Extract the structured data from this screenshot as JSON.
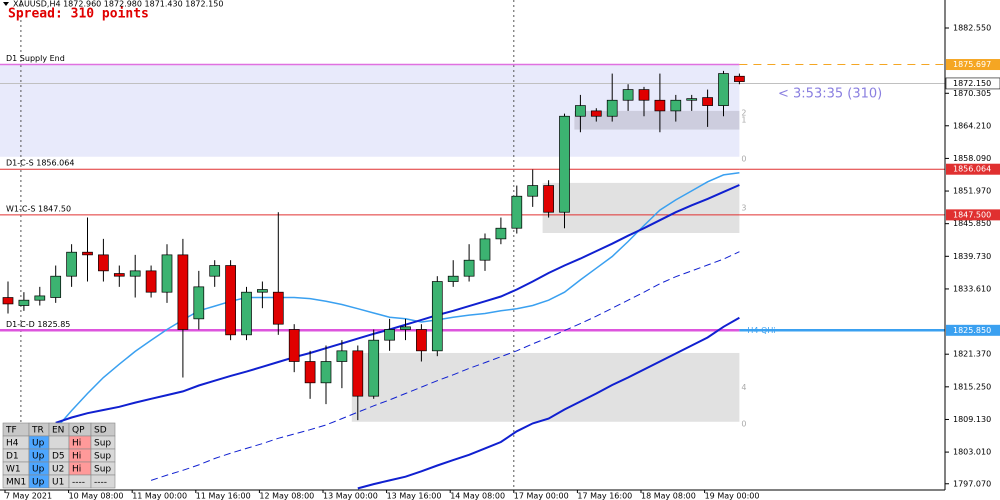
{
  "chart_data": {
    "type": "candlestick",
    "title": "XAUUSD,H4  1872.960 1872.980 1871.430 1872.150",
    "subtitle": "Spread: 310 points",
    "countdown": "< 3:53:35 (310)",
    "ylim": [
      1795.9,
      1887.8
    ],
    "yticks": [
      {
        "value": 1882.55,
        "label": "1882.550"
      },
      {
        "value": 1870.305,
        "label": "1870.305"
      },
      {
        "value": 1864.21,
        "label": "1864.210"
      },
      {
        "value": 1858.09,
        "label": "1858.090"
      },
      {
        "value": 1851.97,
        "label": "1851.970"
      },
      {
        "value": 1845.85,
        "label": "1845.850"
      },
      {
        "value": 1839.73,
        "label": "1839.730"
      },
      {
        "value": 1833.61,
        "label": "1833.610"
      },
      {
        "value": 1821.37,
        "label": "1821.370"
      },
      {
        "value": 1815.25,
        "label": "1815.250"
      },
      {
        "value": 1809.13,
        "label": "1809.130"
      },
      {
        "value": 1803.01,
        "label": "1803.010"
      },
      {
        "value": 1797.07,
        "label": "1797.070"
      }
    ],
    "categories": [
      "7 May 2021",
      null,
      null,
      null,
      "10 May 08:00",
      null,
      null,
      null,
      "11 May 00:00",
      null,
      null,
      null,
      "11 May 16:00",
      null,
      null,
      null,
      "12 May 08:00",
      null,
      null,
      null,
      "13 May 00:00",
      null,
      null,
      null,
      "13 May 16:00",
      null,
      null,
      null,
      "14 May 08:00",
      null,
      null,
      null,
      "17 May 00:00",
      null,
      null,
      null,
      "17 May 16:00",
      null,
      null,
      null,
      "18 May 08:00",
      null,
      null,
      null,
      "19 May 00:00",
      null,
      null
    ],
    "session_lines": [
      1,
      32
    ],
    "up_color": "#3cb371",
    "down_color": "#e00000",
    "open": [
      1832,
      1830.5,
      1831.5,
      1832,
      1836,
      1840.5,
      1840,
      1836.5,
      1836,
      1837,
      1833,
      1840,
      1828,
      1836,
      1838,
      1825,
      1833,
      1833,
      1826,
      1820,
      1816,
      1820,
      1822,
      1813.5,
      1824,
      1826,
      1826,
      1822,
      1835,
      1836,
      1839,
      1843,
      1845,
      1851,
      1853,
      1848,
      1866,
      1867,
      1866,
      1869,
      1871,
      1869,
      1867,
      1869,
      1869.5,
      1868,
      1873.5
    ],
    "close": [
      1830.8,
      1831.5,
      1832.3,
      1836,
      1840.5,
      1840,
      1837,
      1836,
      1837,
      1833,
      1840,
      1826,
      1834,
      1838,
      1825,
      1833,
      1833.5,
      1827,
      1820,
      1816,
      1820,
      1822,
      1813.5,
      1824,
      1826,
      1826.5,
      1822,
      1835,
      1836,
      1839,
      1843,
      1845,
      1851,
      1853,
      1848,
      1866,
      1868,
      1866,
      1869,
      1871,
      1869,
      1867,
      1869,
      1869.3,
      1868,
      1874,
      1872.5
    ],
    "high": [
      1835,
      1833,
      1834,
      1838,
      1842,
      1847,
      1843,
      1838,
      1840,
      1838,
      1842,
      1843,
      1837,
      1839,
      1839,
      1834,
      1835,
      1848,
      1827,
      1822,
      1823,
      1824,
      1823,
      1826,
      1828,
      1828,
      1827,
      1836,
      1839,
      1842,
      1844,
      1847,
      1853,
      1856,
      1854,
      1866.5,
      1870,
      1867.5,
      1874,
      1872,
      1871.5,
      1874,
      1870,
      1870,
      1871,
      1874.5,
      1874
    ],
    "low": [
      1829,
      1829.5,
      1830.5,
      1831,
      1834,
      1835,
      1835,
      1834,
      1832,
      1832,
      1831,
      1817,
      1826,
      1834,
      1824,
      1824,
      1830,
      1825,
      1818,
      1813,
      1812,
      1815,
      1809,
      1813,
      1822,
      1824,
      1820,
      1821,
      1834,
      1835,
      1837,
      1842,
      1844,
      1849,
      1847,
      1845,
      1863,
      1865,
      1865,
      1867,
      1866,
      1863,
      1865,
      1867,
      1864,
      1866,
      1872
    ],
    "series": [
      {
        "color": "#3aa0f0",
        "dash": false,
        "width": 1.5,
        "values": [
          null,
          null,
          null,
          1807.4,
          1810.8,
          1814,
          1817,
          1819.5,
          1821.9,
          1824,
          1826,
          1827.8,
          1829.5,
          1830.4,
          1831.3,
          1832,
          1832,
          1832,
          1832,
          1831.8,
          1831.3,
          1830.7,
          1829.9,
          1829.1,
          1828.3,
          1828,
          1827.4,
          1827.8,
          1828.3,
          1828.7,
          1829,
          1829.5,
          1829.9,
          1830.5,
          1831.5,
          1833,
          1835.3,
          1837.5,
          1839.7,
          1842.5,
          1845.5,
          1848.4,
          1850.3,
          1852,
          1853.7,
          1855,
          1855.4
        ]
      },
      {
        "color": "#1020d0",
        "dash": false,
        "width": 2,
        "values": [
          null,
          null,
          null,
          1808.5,
          1809.5,
          1810.3,
          1810.9,
          1811.5,
          1812.3,
          1813,
          1813.7,
          1814.4,
          1815.5,
          1816.4,
          1817.3,
          1818.1,
          1819,
          1819.9,
          1820.8,
          1821.6,
          1822.5,
          1823.4,
          1824.3,
          1825.2,
          1826,
          1826.9,
          1827.8,
          1828.7,
          1829.5,
          1830.4,
          1831.3,
          1832.2,
          1833.5,
          1835,
          1836.6,
          1838,
          1839.3,
          1840.7,
          1842.1,
          1843.6,
          1845,
          1846.5,
          1848,
          1849.3,
          1850.5,
          1851.8,
          1853.1
        ]
      },
      {
        "color": "#1020d0",
        "dash": true,
        "width": 1,
        "values": [
          null,
          null,
          null,
          null,
          null,
          null,
          null,
          null,
          null,
          1797.7,
          1798.7,
          1799.6,
          1800.6,
          1801.8,
          1802.8,
          1803.7,
          1804.6,
          1805.6,
          1806.4,
          1807.2,
          1808.1,
          1809.3,
          1810.5,
          1811.7,
          1812.8,
          1814,
          1815.2,
          1816.4,
          1817.5,
          1818.7,
          1819.8,
          1820.9,
          1822,
          1823.3,
          1824.5,
          1825.8,
          1827.1,
          1828.5,
          1830,
          1831.5,
          1833,
          1834.6,
          1835.9,
          1837,
          1838.1,
          1839.2,
          1840.6
        ]
      },
      {
        "color": "#1020d0",
        "dash": false,
        "width": 2,
        "values": [
          null,
          null,
          null,
          null,
          null,
          null,
          null,
          null,
          null,
          null,
          null,
          null,
          null,
          null,
          null,
          null,
          null,
          null,
          null,
          null,
          null,
          null,
          1796.2,
          1797,
          1797.7,
          1798.4,
          1799.4,
          1800.5,
          1801.5,
          1802.5,
          1803.7,
          1804.9,
          1806.9,
          1808.4,
          1809.3,
          1811,
          1812.5,
          1814,
          1815.6,
          1817,
          1818.5,
          1820,
          1821.5,
          1823,
          1824.5,
          1826.5,
          1828.2
        ]
      }
    ],
    "zones": [
      {
        "top": 1875.697,
        "bottom": 1858.4,
        "start": 0,
        "color": "#e4e6fa",
        "labels": [
          {
            "text": "0",
            "at": "bottom"
          }
        ]
      },
      {
        "top": 1867,
        "bottom": 1863.5,
        "start": 36,
        "color": "#c8c8d8",
        "labels": [
          {
            "text": "2",
            "at": "top"
          },
          {
            "text": "1",
            "at": "middle"
          }
        ]
      },
      {
        "top": 1853.5,
        "bottom": 1844.1,
        "start": 34,
        "color": "#dcdcdc",
        "labels": [
          {
            "text": "3",
            "at": "middle"
          }
        ]
      },
      {
        "top": 1821.6,
        "bottom": 1808.7,
        "start": 22,
        "color": "#dcdcdc",
        "labels": [
          {
            "text": "4",
            "at": "middle"
          },
          {
            "text": "0",
            "at": "bottom"
          }
        ]
      }
    ],
    "levels": [
      {
        "name": "D1 Supply End",
        "value": 1875.697,
        "label": "1875.697",
        "line_color": "#e070e0",
        "ext_color": "#f5a623",
        "ext_dash": true,
        "tag_color": "#f5a623",
        "tag_text": "#ffffff",
        "width": 1.5
      },
      {
        "value": 1872.15,
        "label": "1872.150",
        "line_color": "#c0c0c0",
        "ext_color": "#c0c0c0",
        "ext_dash": false,
        "tag_color": "#ffffff",
        "tag_text": "#000000",
        "width": 1
      },
      {
        "name": "D1-C-S 1856.064",
        "value": 1856.064,
        "label": "1856.064",
        "line_color": "#e03030",
        "ext_color": "#e03030",
        "ext_dash": false,
        "tag_color": "#e03030",
        "tag_text": "#ffffff",
        "width": 1
      },
      {
        "name": "W1-C-S 1847.50",
        "value": 1847.5,
        "label": "1847.500",
        "line_color": "#e03030",
        "ext_color": "#e03030",
        "ext_dash": false,
        "tag_color": "#e03030",
        "tag_text": "#ffffff",
        "width": 1
      },
      {
        "name": "D1-C-D 1825.85",
        "value": 1825.85,
        "label": "1825.850",
        "note": "H4 QHi",
        "line_color": "#dd55dd",
        "ext_color": "#3aa0f0",
        "ext_dash": false,
        "tag_color": "#3aa0f0",
        "tag_text": "#ffffff",
        "width": 2.5
      }
    ],
    "table": {
      "header": [
        "TF",
        "TR",
        "EN",
        "QP",
        "SD"
      ],
      "rows": [
        [
          "H4",
          "Up",
          null,
          "Hi",
          "Sup"
        ],
        [
          "D1",
          "Up",
          "D5",
          "Hi",
          "Sup"
        ],
        [
          "W1",
          "Up",
          "U2",
          "Hi",
          "Sup"
        ],
        [
          "MN1",
          "Up",
          "U1",
          "----",
          "----"
        ]
      ],
      "colors": {
        "Up": "#4da6ff",
        "Hi": "#ff9a9a"
      }
    }
  }
}
